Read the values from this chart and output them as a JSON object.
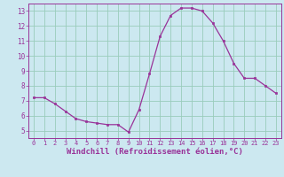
{
  "x": [
    0,
    1,
    2,
    3,
    4,
    5,
    6,
    7,
    8,
    9,
    10,
    11,
    12,
    13,
    14,
    15,
    16,
    17,
    18,
    19,
    20,
    21,
    22,
    23
  ],
  "y": [
    7.2,
    7.2,
    6.8,
    6.3,
    5.8,
    5.6,
    5.5,
    5.4,
    5.4,
    4.9,
    6.4,
    8.8,
    11.3,
    12.7,
    13.2,
    13.2,
    13.0,
    12.2,
    11.0,
    9.5,
    8.5,
    8.5,
    8.0,
    7.5
  ],
  "line_color": "#993399",
  "marker": "s",
  "marker_size": 2.0,
  "linewidth": 0.9,
  "xlabel": "Windchill (Refroidissement éolien,°C)",
  "xlabel_fontsize": 6.5,
  "bg_color": "#cce8f0",
  "grid_color": "#99ccbb",
  "tick_label_color": "#993399",
  "axis_label_color": "#993399",
  "ylim": [
    4.5,
    13.5
  ],
  "xlim": [
    -0.5,
    23.5
  ],
  "yticks": [
    5,
    6,
    7,
    8,
    9,
    10,
    11,
    12,
    13
  ],
  "xticks": [
    0,
    1,
    2,
    3,
    4,
    5,
    6,
    7,
    8,
    9,
    10,
    11,
    12,
    13,
    14,
    15,
    16,
    17,
    18,
    19,
    20,
    21,
    22,
    23
  ]
}
